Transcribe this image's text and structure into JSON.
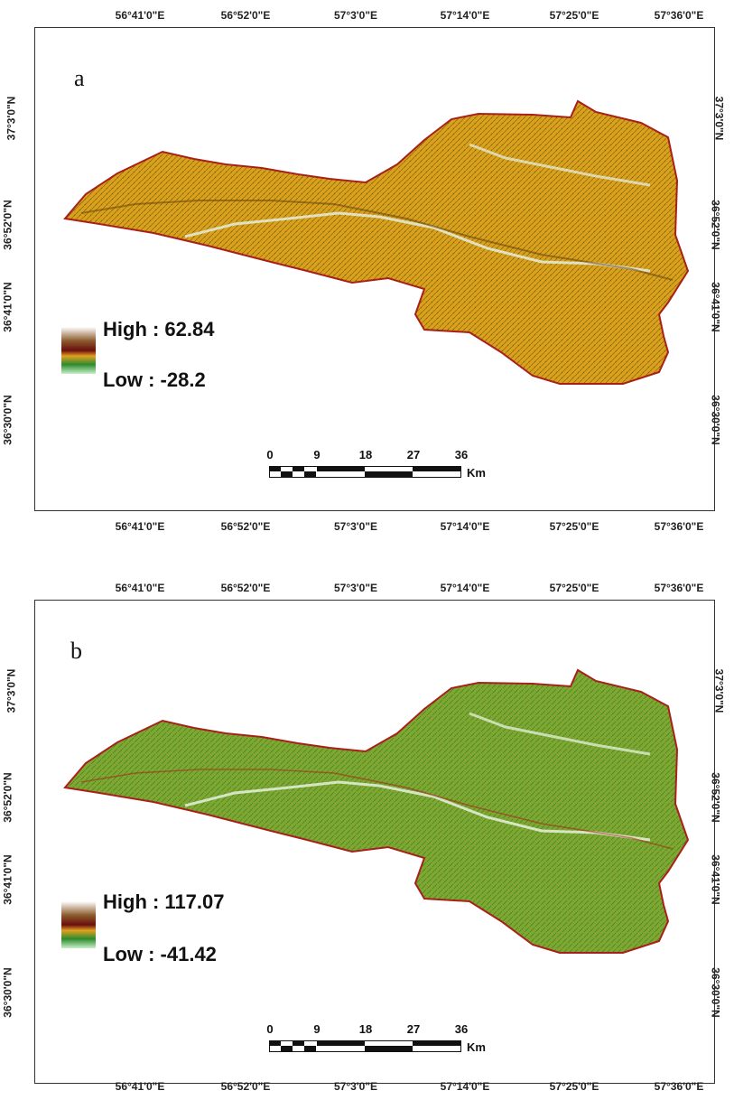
{
  "longitude_ticks": [
    "56°41'0\"E",
    "56°52'0\"E",
    "57°3'0\"E",
    "57°14'0\"E",
    "57°25'0\"E",
    "57°36'0\"E"
  ],
  "latitude_ticks": [
    "37°3'0\"N",
    "36°52'0\"N",
    "36°41'0\"N",
    "36°30'0\"N"
  ],
  "scale_bar": {
    "labels": [
      "0",
      "9",
      "18",
      "27",
      "36"
    ],
    "unit": "Km"
  },
  "maps": [
    {
      "panel_label": "a",
      "legend": {
        "high": "High : 62.84",
        "low": "Low : -28.2"
      },
      "colors": {
        "base": "#d9a21a",
        "texture": "#7a4a10",
        "boundary": "#a8201a",
        "ridge": "#e6f2ea"
      }
    },
    {
      "panel_label": "b",
      "legend": {
        "high": "High : 117.07",
        "low": "Low : -41.42"
      },
      "colors": {
        "base": "#7fa832",
        "texture": "#2e7a1e",
        "boundary": "#a8201a",
        "ridge": "#eef6ea"
      }
    }
  ],
  "legend_ramp": [
    "#ffffff",
    "#8b5a2b",
    "#6b0f0f",
    "#e0a020",
    "#2e8b2e",
    "#c8f0c8"
  ]
}
